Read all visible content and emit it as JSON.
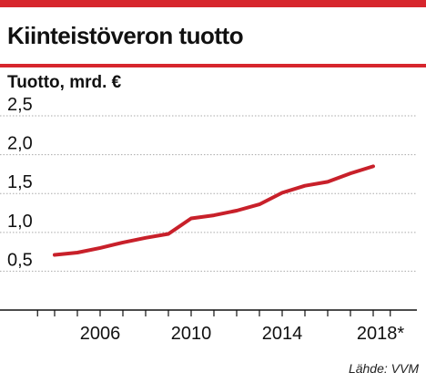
{
  "header": {
    "title": "Kiinteistöveron tuotto",
    "source": "Lähde: VVM"
  },
  "colors": {
    "accent": "#d7262d",
    "line": "#c8202a",
    "grid": "#aaaaaa"
  },
  "chart_data": {
    "type": "line",
    "title": "Kiinteistöveron tuotto",
    "ylabel": "Tuotto, mrd. €",
    "xlabel": "",
    "x": [
      2004,
      2005,
      2006,
      2007,
      2008,
      2009,
      2010,
      2011,
      2012,
      2013,
      2014,
      2015,
      2016,
      2017,
      2018
    ],
    "series": [
      {
        "values": [
          0.71,
          0.74,
          0.8,
          0.87,
          0.93,
          0.98,
          1.18,
          1.22,
          1.28,
          1.36,
          1.51,
          1.6,
          1.65,
          1.76,
          1.85
        ]
      }
    ],
    "xlim": [
      2003.2,
      2018.8
    ],
    "ylim": [
      0,
      2.7
    ],
    "yticks": [
      0.5,
      1.0,
      1.5,
      2.0,
      2.5
    ],
    "ytick_labels": [
      "0,5",
      "1,0",
      "1,5",
      "2,0",
      "2,5"
    ],
    "xticks": [
      2006,
      2010,
      2014,
      2018
    ],
    "xtick_labels": [
      "2006",
      "2010",
      "2014",
      "2018*"
    ],
    "grid": true,
    "legend": "none"
  }
}
